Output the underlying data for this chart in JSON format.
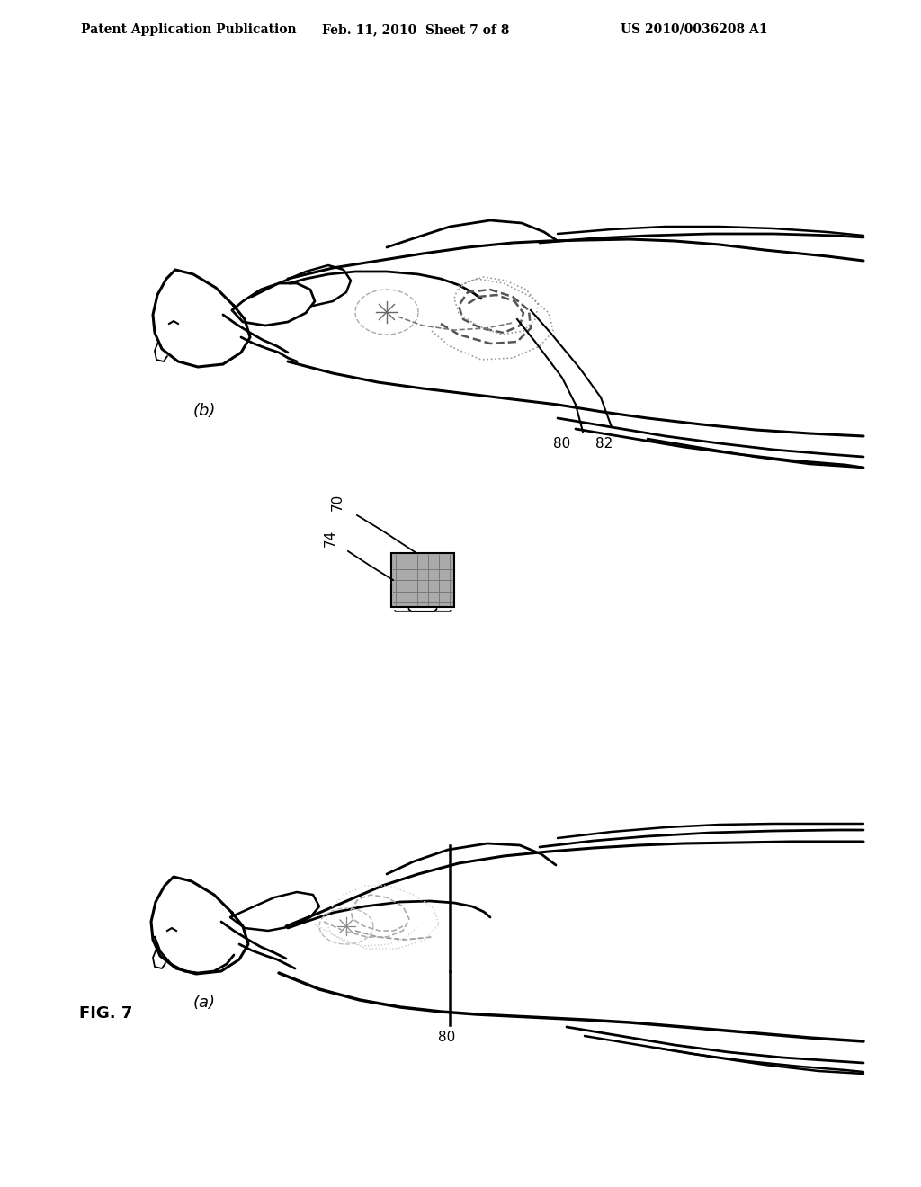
{
  "title_left": "Patent Application Publication",
  "title_mid": "Feb. 11, 2010  Sheet 7 of 8",
  "title_right": "US 2010/0036208 A1",
  "fig_label": "FIG. 7",
  "sub_a_label": "(a)",
  "sub_b_label": "(b)",
  "label_70": "70",
  "label_74": "74",
  "label_80a": "80",
  "label_80b": "80",
  "label_82": "82",
  "bg_color": "#ffffff",
  "line_color": "#000000",
  "gray_box_color": "#aaaaaa",
  "header_fontsize": 10,
  "label_fontsize": 11,
  "fig_label_fontsize": 13,
  "sublabel_fontsize": 13
}
